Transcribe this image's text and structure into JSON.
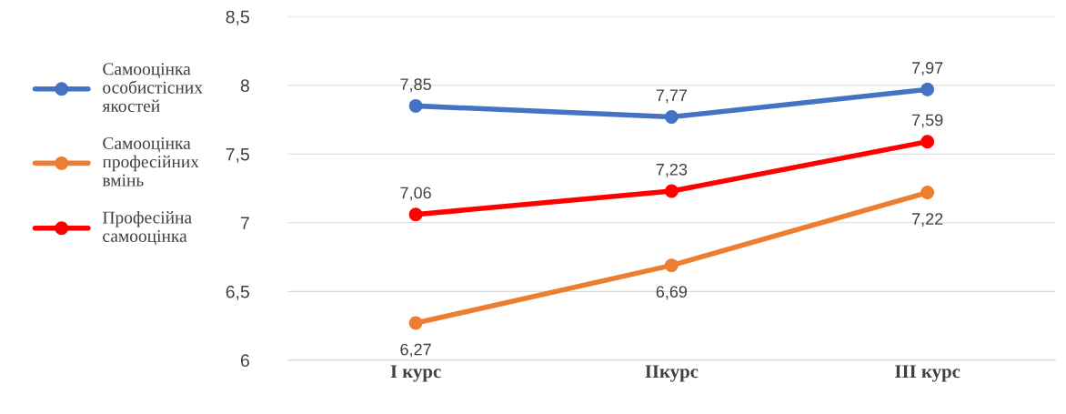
{
  "chart_data": {
    "type": "line",
    "categories": [
      "I курс",
      "IIкурс",
      "III курс"
    ],
    "series": [
      {
        "name": "Самооцінка особистісних якостей",
        "color": "#4472c4",
        "values": [
          7.85,
          7.77,
          7.97
        ],
        "value_labels": [
          "7,85",
          "7,77",
          "7,97"
        ]
      },
      {
        "name": "Самооцінка професійних вмінь",
        "color": "#ed7d31",
        "values": [
          6.27,
          6.69,
          7.22
        ],
        "value_labels": [
          "6,27",
          "6,69",
          "7,22"
        ]
      },
      {
        "name": "Професійна самооцінка",
        "color": "#ff0000",
        "values": [
          7.06,
          7.23,
          7.59
        ],
        "value_labels": [
          "7,06",
          "7,23",
          "7,59"
        ]
      }
    ],
    "ylim": [
      6,
      8.5
    ],
    "yticks": [
      6,
      {
        "value": 6.5,
        "label": "6,5"
      },
      7,
      {
        "value": 7.5,
        "label": "7,5"
      },
      8,
      {
        "value": 8.5,
        "label": "8,5"
      }
    ],
    "grid": "y",
    "legend": "left",
    "marker": "circle",
    "line_style": "solid"
  }
}
